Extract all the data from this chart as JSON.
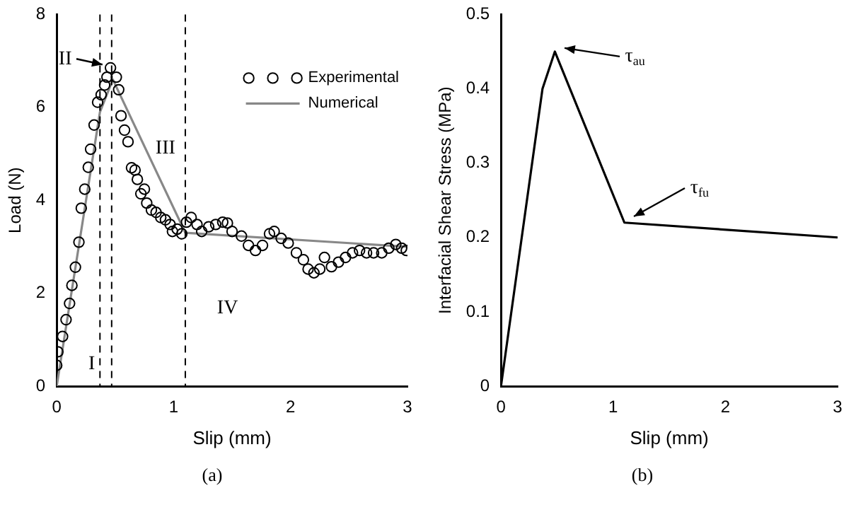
{
  "chart_data": [
    {
      "type": "scatter",
      "xlabel": "Slip (mm)",
      "ylabel": "Load (N)",
      "xlim": [
        0,
        3
      ],
      "xticks": [
        0,
        1,
        2,
        3
      ],
      "ylim": [
        0,
        8
      ],
      "yticks": [
        0,
        2,
        4,
        6,
        8
      ],
      "grid": false,
      "legend": "top right",
      "series": [
        {
          "name": "Experimental",
          "marker": "circle",
          "color": "#000000",
          "x": [
            0.0,
            0.01,
            0.05,
            0.08,
            0.11,
            0.13,
            0.16,
            0.19,
            0.21,
            0.24,
            0.27,
            0.29,
            0.32,
            0.35,
            0.38,
            0.41,
            0.43,
            0.46,
            0.51,
            0.53,
            0.55,
            0.58,
            0.61,
            0.64,
            0.67,
            0.69,
            0.72,
            0.75,
            0.77,
            0.81,
            0.85,
            0.89,
            0.93,
            0.97,
            0.99,
            1.03,
            1.07,
            1.11,
            1.15,
            1.2,
            1.24,
            1.3,
            1.36,
            1.42,
            1.46,
            1.5,
            1.58,
            1.64,
            1.7,
            1.76,
            1.82,
            1.86,
            1.92,
            1.98,
            2.05,
            2.11,
            2.15,
            2.2,
            2.25,
            2.29,
            2.35,
            2.41,
            2.47,
            2.53,
            2.59,
            2.65,
            2.71,
            2.78,
            2.84,
            2.9,
            2.95,
            2.99
          ],
          "values": [
            0.45,
            0.74,
            1.07,
            1.43,
            1.78,
            2.17,
            2.56,
            3.1,
            3.83,
            4.24,
            4.71,
            5.1,
            5.62,
            6.11,
            6.27,
            6.48,
            6.65,
            6.85,
            6.65,
            6.38,
            5.82,
            5.51,
            5.26,
            4.7,
            4.65,
            4.45,
            4.14,
            4.24,
            3.94,
            3.79,
            3.74,
            3.63,
            3.58,
            3.48,
            3.33,
            3.38,
            3.28,
            3.53,
            3.63,
            3.48,
            3.33,
            3.43,
            3.48,
            3.53,
            3.51,
            3.33,
            3.23,
            3.03,
            2.92,
            3.03,
            3.28,
            3.33,
            3.18,
            3.08,
            2.87,
            2.72,
            2.52,
            2.44,
            2.52,
            2.77,
            2.57,
            2.67,
            2.77,
            2.87,
            2.92,
            2.87,
            2.87,
            2.87,
            2.97,
            3.05,
            2.97,
            2.92
          ]
        },
        {
          "name": "Numerical",
          "type": "line",
          "marker": "none",
          "color": "#888888",
          "x": [
            0,
            0.37,
            0.48,
            1.1,
            3.0
          ],
          "values": [
            0,
            5.9,
            6.6,
            3.3,
            3.0
          ]
        }
      ],
      "ref_lines": [
        {
          "axis": "x",
          "value": 0.37,
          "line_style": "dashed",
          "color": "#000000"
        },
        {
          "axis": "x",
          "value": 0.47,
          "line_style": "dashed",
          "color": "#000000"
        },
        {
          "axis": "x",
          "value": 1.1,
          "line_style": "dashed",
          "color": "#000000"
        }
      ],
      "annotations": [
        "I",
        {
          "text": "II",
          "x": 0.46,
          "y": 6.85
        },
        "III",
        "IV",
        "(a)"
      ]
    },
    {
      "type": "line",
      "xlabel": "Slip (mm)",
      "ylabel": "Interfacial Shear Stress (MPa)",
      "xlim": [
        0,
        3
      ],
      "xticks": [
        0,
        1,
        2,
        3
      ],
      "ylim": [
        0,
        0.5
      ],
      "yticks": [
        0,
        0.1,
        0.2,
        0.3,
        0.4,
        0.5
      ],
      "grid": false,
      "series": [
        {
          "color": "#000000",
          "marker": "none",
          "x": [
            0,
            0.37,
            0.48,
            1.1,
            3.0
          ],
          "values": [
            0,
            0.4,
            0.45,
            0.22,
            0.2
          ]
        }
      ],
      "annotations": [
        {
          "text": "τ$_{au}$",
          "x": 0.5,
          "y": 0.455
        },
        {
          "text": "τ$_{fu}$",
          "x": 1.12,
          "y": 0.225
        },
        "(b)"
      ]
    }
  ]
}
